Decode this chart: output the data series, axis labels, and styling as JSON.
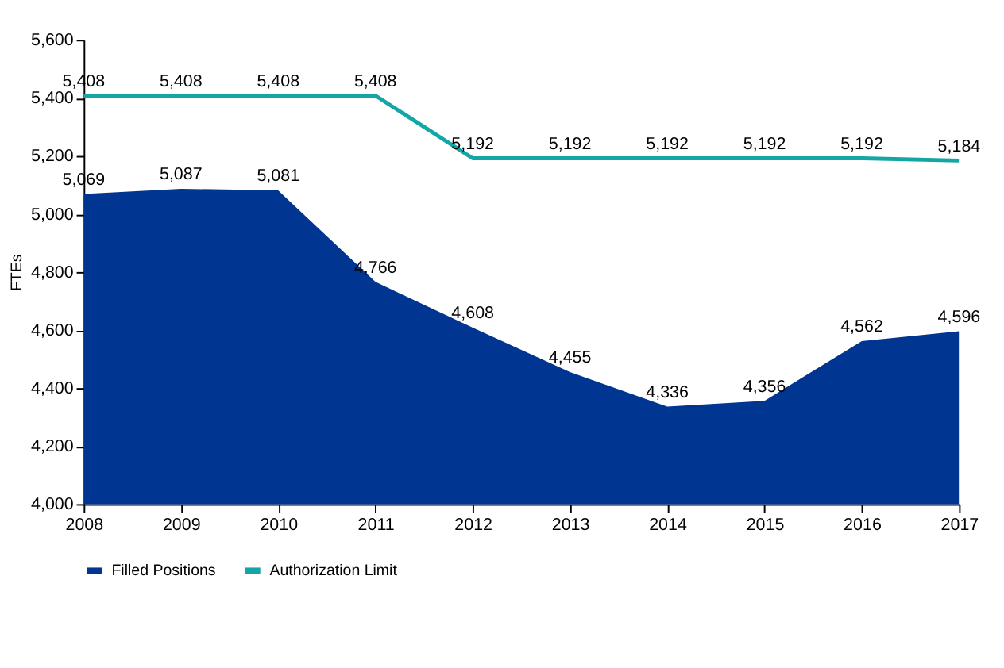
{
  "chart_data": {
    "type": "area",
    "ylabel": "FTEs",
    "x": [
      2008,
      2009,
      2010,
      2011,
      2012,
      2013,
      2014,
      2015,
      2016,
      2017
    ],
    "series": [
      {
        "name": "Filled Positions",
        "type": "area",
        "color": "#003591",
        "values": [
          5069,
          5087,
          5081,
          4766,
          4608,
          4455,
          4336,
          4356,
          4562,
          4596
        ],
        "value_labels": [
          "5,069",
          "5,087",
          "5,081",
          "4,766",
          "4,608",
          "4,455",
          "4,336",
          "4,356",
          "4,562",
          "4,596"
        ]
      },
      {
        "name": "Authorization Limit",
        "type": "line",
        "color": "#14a5a5",
        "values": [
          5408,
          5408,
          5408,
          5408,
          5192,
          5192,
          5192,
          5192,
          5192,
          5184
        ],
        "value_labels": [
          "5,408",
          "5,408",
          "5,408",
          "5,408",
          "5,192",
          "5,192",
          "5,192",
          "5,192",
          "5,192",
          "5,184"
        ]
      }
    ],
    "xlim": [
      2008,
      2017
    ],
    "xticks": [
      2008,
      2009,
      2010,
      2011,
      2012,
      2013,
      2014,
      2015,
      2016,
      2017
    ],
    "ylim": [
      4000,
      5600
    ],
    "yticks": [
      {
        "value": 4000,
        "label": "4,000"
      },
      {
        "value": 4200,
        "label": "4,200"
      },
      {
        "value": 4400,
        "label": "4,400"
      },
      {
        "value": 4600,
        "label": "4,600"
      },
      {
        "value": 4800,
        "label": "4,800"
      },
      {
        "value": 5000,
        "label": "5,000"
      },
      {
        "value": 5200,
        "label": "5,200"
      },
      {
        "value": 5400,
        "label": "5,400"
      },
      {
        "value": 5600,
        "label": "5,600"
      }
    ],
    "grid": false,
    "legend": "bottom"
  }
}
